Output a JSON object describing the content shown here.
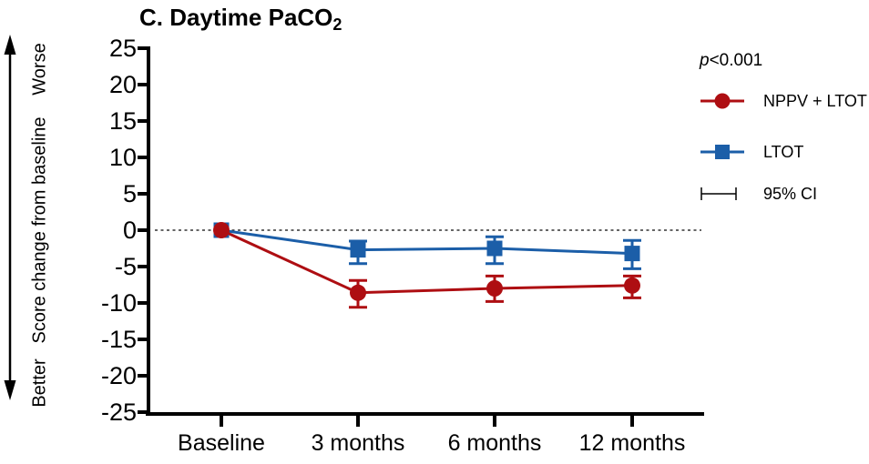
{
  "title": {
    "text": "C. Daytime PaCO",
    "subscript": "2"
  },
  "axis_labels": {
    "y": "Score change from baseline",
    "direction_top": "Worse",
    "direction_bottom": "Better"
  },
  "annotation": {
    "p_italic": "p",
    "p_rest": "<0.001"
  },
  "legend": {
    "items": [
      {
        "label": "NPPV + LTOT"
      },
      {
        "label": "LTOT"
      }
    ],
    "ci_label": "95% CI"
  },
  "chart_data": {
    "type": "line",
    "title": "C. Daytime PaCO2",
    "xlabel": "",
    "ylabel": "Score change from baseline",
    "categories": [
      "Baseline",
      "3 months",
      "6 months",
      "12 months"
    ],
    "series": [
      {
        "name": "NPPV + LTOT",
        "marker": "circle",
        "color": "#AE0E12",
        "values": [
          0,
          -8.6,
          -8.0,
          -7.6
        ],
        "ci_lower": [
          0,
          -10.6,
          -9.8,
          -9.3
        ],
        "ci_upper": [
          0,
          -6.9,
          -6.3,
          -6.3
        ]
      },
      {
        "name": "LTOT",
        "marker": "square",
        "color": "#1B5EA8",
        "values": [
          0,
          -2.7,
          -2.5,
          -3.2
        ],
        "ci_lower": [
          0,
          -4.6,
          -4.6,
          -5.3
        ],
        "ci_upper": [
          0,
          -1.5,
          -0.9,
          -1.4
        ]
      }
    ],
    "ylim": [
      -25,
      25
    ],
    "yticks": [
      25,
      20,
      15,
      10,
      5,
      0,
      -5,
      -10,
      -15,
      -20,
      -25
    ],
    "zero_line": "dotted",
    "error_bars": "95% CI",
    "p_value": "p<0.001",
    "legend_position": "right",
    "grid": false
  }
}
